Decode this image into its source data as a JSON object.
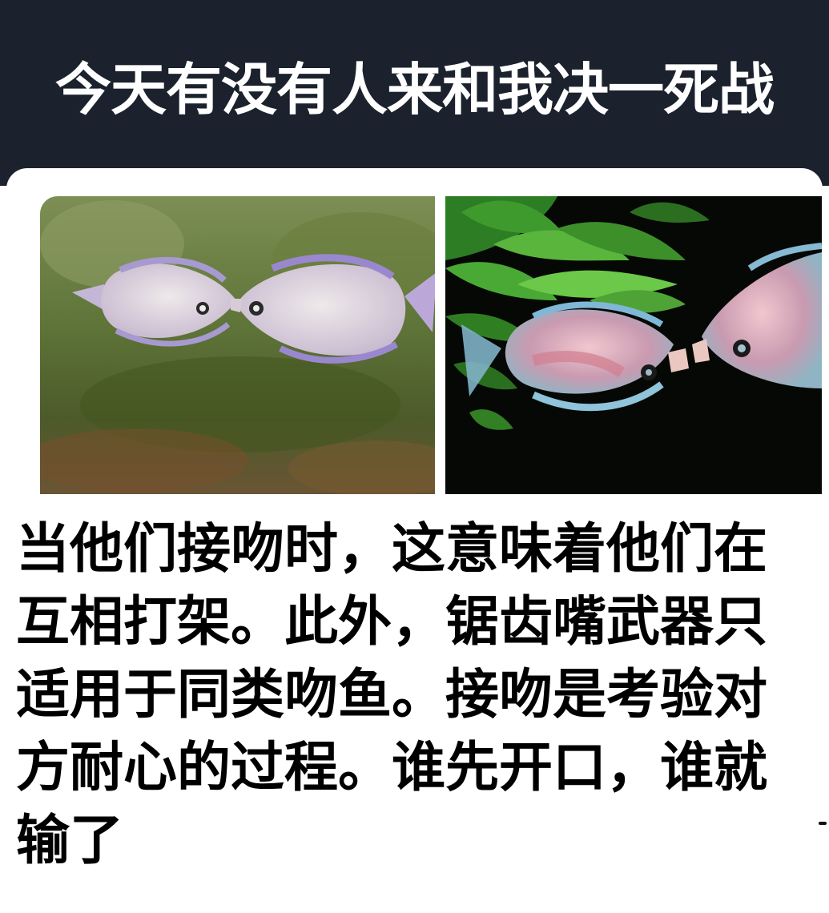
{
  "meme": {
    "title": "今天有没有人来和我决一死战",
    "caption_lines": [
      "当他们接吻时，这意味着他们在",
      "互相打架。此外，锯齿嘴武器只",
      "适用于同类吻鱼。接吻是考验对",
      "方耐心的过程。谁先开口，谁就",
      "输了"
    ]
  },
  "colors": {
    "header_bg": "#1b222d",
    "title_text": "#ffffff",
    "caption_text": "#000000"
  }
}
